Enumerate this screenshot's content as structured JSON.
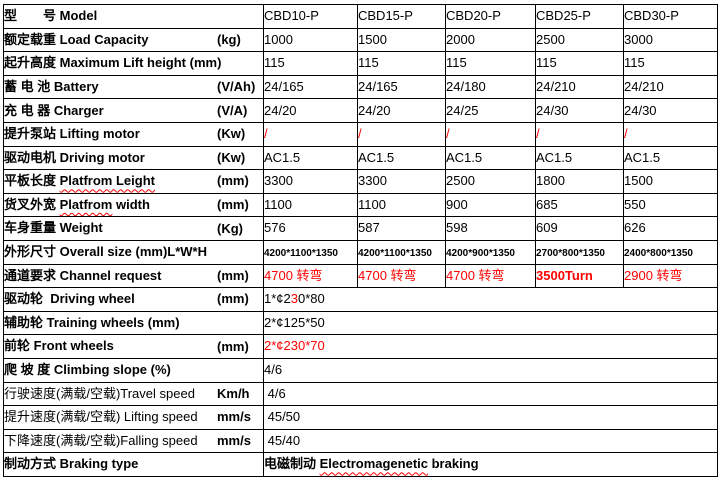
{
  "colors": {
    "text": "#000000",
    "accent_red": "#ff0000",
    "border": "#000000",
    "background": "#ffffff",
    "spellcheck_underline": "#ff0000"
  },
  "table": {
    "model_columns": [
      "CBD10-P",
      "CBD15-P",
      "CBD20-P",
      "CBD25-P",
      "CBD30-P"
    ],
    "rows": [
      {
        "name": "model",
        "label": [
          {
            "t": "型　　号 ",
            "b": true
          },
          {
            "t": "Model",
            "b": true
          }
        ],
        "cells": [
          [
            {
              "t": "CBD10-P"
            }
          ],
          [
            {
              "t": "CBD15-P"
            }
          ],
          [
            {
              "t": "CBD20-P"
            }
          ],
          [
            {
              "t": "CBD25-P"
            }
          ],
          [
            {
              "t": "CBD30-P"
            }
          ]
        ]
      },
      {
        "name": "load-capacity",
        "label": [
          {
            "t": "额定载重 ",
            "b": true
          },
          {
            "t": "Load Capacity",
            "b": true
          },
          {
            "t": "(kg)",
            "b": true,
            "u": true
          }
        ],
        "cells": [
          [
            {
              "t": "1000"
            }
          ],
          [
            {
              "t": "1500"
            }
          ],
          [
            {
              "t": "2000"
            }
          ],
          [
            {
              "t": "2500"
            }
          ],
          [
            {
              "t": "3000"
            }
          ]
        ]
      },
      {
        "name": "max-lift-height",
        "label": [
          {
            "t": "起升高度 ",
            "b": true
          },
          {
            "t": "Maximum Lift height (mm)",
            "b": true
          }
        ],
        "cells": [
          [
            {
              "t": "115"
            }
          ],
          [
            {
              "t": "115"
            }
          ],
          [
            {
              "t": "115"
            }
          ],
          [
            {
              "t": "115"
            }
          ],
          [
            {
              "t": "115"
            }
          ]
        ]
      },
      {
        "name": "battery",
        "label": [
          {
            "t": "蓄 电 池 ",
            "b": true
          },
          {
            "t": "Battery",
            "b": true
          },
          {
            "t": "(V/Ah)",
            "b": true,
            "u": true
          }
        ],
        "cells": [
          [
            {
              "t": "24/165"
            }
          ],
          [
            {
              "t": "24/165"
            }
          ],
          [
            {
              "t": "24/180"
            }
          ],
          [
            {
              "t": "24/210"
            }
          ],
          [
            {
              "t": "24/210"
            }
          ]
        ]
      },
      {
        "name": "charger",
        "label": [
          {
            "t": "充 电 器 ",
            "b": true
          },
          {
            "t": "Charger",
            "b": true
          },
          {
            "t": "(V/A)",
            "b": true,
            "u": true
          }
        ],
        "cells": [
          [
            {
              "t": "24/20"
            }
          ],
          [
            {
              "t": "24/20"
            }
          ],
          [
            {
              "t": "24/25"
            }
          ],
          [
            {
              "t": "24/30"
            }
          ],
          [
            {
              "t": "24/30"
            }
          ]
        ]
      },
      {
        "name": "lifting-motor",
        "label": [
          {
            "t": "提升泵站 ",
            "b": true
          },
          {
            "t": "Lifting motor",
            "b": true
          },
          {
            "t": "(Kw)",
            "b": true,
            "u": true
          }
        ],
        "cells": [
          [
            {
              "t": "/",
              "r": true
            }
          ],
          [
            {
              "t": "/",
              "r": true
            }
          ],
          [
            {
              "t": "/",
              "r": true
            }
          ],
          [
            {
              "t": "/",
              "r": true
            }
          ],
          [
            {
              "t": "/",
              "r": true
            }
          ]
        ]
      },
      {
        "name": "driving-motor",
        "label": [
          {
            "t": "驱动电机 ",
            "b": true
          },
          {
            "t": "Driving motor",
            "b": true
          },
          {
            "t": "(Kw)",
            "b": true,
            "u": true
          }
        ],
        "cells": [
          [
            {
              "t": "AC1.5"
            }
          ],
          [
            {
              "t": "AC1.5"
            }
          ],
          [
            {
              "t": "AC1.5"
            }
          ],
          [
            {
              "t": "AC1.5"
            }
          ],
          [
            {
              "t": "AC1.5"
            }
          ]
        ]
      },
      {
        "name": "platform-length",
        "label": [
          {
            "t": "平板长度 ",
            "b": true
          },
          {
            "t": "Platfrom Leight",
            "b": true,
            "w": true
          },
          {
            "t": "(mm)",
            "b": true,
            "u": true
          }
        ],
        "cells": [
          [
            {
              "t": "3300"
            }
          ],
          [
            {
              "t": "3300"
            }
          ],
          [
            {
              "t": "2500"
            }
          ],
          [
            {
              "t": "1800"
            }
          ],
          [
            {
              "t": "1500"
            }
          ]
        ]
      },
      {
        "name": "platform-width",
        "label": [
          {
            "t": "货叉外宽 ",
            "b": true
          },
          {
            "t": "Platfrom",
            "b": true,
            "w": true
          },
          {
            "t": " width",
            "b": true
          },
          {
            "t": "(mm)",
            "b": true,
            "u": true
          }
        ],
        "cells": [
          [
            {
              "t": "1100"
            }
          ],
          [
            {
              "t": "1100"
            }
          ],
          [
            {
              "t": "900"
            }
          ],
          [
            {
              "t": "685"
            }
          ],
          [
            {
              "t": "550"
            }
          ]
        ]
      },
      {
        "name": "weight",
        "label": [
          {
            "t": "车身重量 ",
            "b": true
          },
          {
            "t": "Weight",
            "b": true
          },
          {
            "t": "(Kg)",
            "b": true,
            "u": true
          }
        ],
        "cells": [
          [
            {
              "t": "576"
            }
          ],
          [
            {
              "t": "587"
            }
          ],
          [
            {
              "t": "598"
            }
          ],
          [
            {
              "t": "609"
            }
          ],
          [
            {
              "t": "626"
            }
          ]
        ]
      },
      {
        "name": "overall-size",
        "label": [
          {
            "t": "外形尺寸 ",
            "b": true
          },
          {
            "t": "Overall size (mm)L*W*H",
            "b": true
          }
        ],
        "cells": [
          [
            {
              "t": "4200*1100*1350",
              "b": true,
              "s": true
            }
          ],
          [
            {
              "t": "4200*1100*1350",
              "b": true,
              "s": true
            }
          ],
          [
            {
              "t": "4200*900*1350",
              "b": true,
              "s": true
            }
          ],
          [
            {
              "t": "2700*800*1350",
              "b": true,
              "s": true
            }
          ],
          [
            {
              "t": "2400*800*1350",
              "b": true,
              "s": true
            }
          ]
        ]
      },
      {
        "name": "channel-request",
        "label": [
          {
            "t": "通道要求 ",
            "b": true
          },
          {
            "t": "Channel request",
            "b": true
          },
          {
            "t": "(mm)",
            "b": true,
            "u": true
          }
        ],
        "cells": [
          [
            {
              "t": "4700 转弯",
              "r": true
            }
          ],
          [
            {
              "t": "4700 转弯",
              "r": true
            }
          ],
          [
            {
              "t": "4700 转弯",
              "r": true
            }
          ],
          [
            {
              "t": "3500Turn",
              "r": true,
              "b": true
            }
          ],
          [
            {
              "t": "2900 转弯",
              "r": true
            }
          ]
        ]
      },
      {
        "name": "driving-wheel",
        "span": 5,
        "label": [
          {
            "t": "驱动轮  ",
            "b": true
          },
          {
            "t": "Driving wheel",
            "b": true
          },
          {
            "t": "(mm)",
            "b": true,
            "u": true
          }
        ],
        "cells": [
          [
            {
              "t": "1*¢2"
            },
            {
              "t": "3",
              "r": true
            },
            {
              "t": "0*80"
            }
          ]
        ]
      },
      {
        "name": "training-wheels",
        "span": 5,
        "label": [
          {
            "t": "辅助轮 ",
            "b": true
          },
          {
            "t": "Training wheels (mm)",
            "b": true
          }
        ],
        "cells": [
          [
            {
              "t": "2*¢125*50"
            }
          ]
        ]
      },
      {
        "name": "front-wheels",
        "span": 5,
        "label": [
          {
            "t": "前轮 ",
            "b": true
          },
          {
            "t": "Front wheels",
            "b": true
          },
          {
            "t": "(mm)",
            "b": true,
            "u": true
          }
        ],
        "cells": [
          [
            {
              "t": "2*¢230*70",
              "r": true
            }
          ]
        ]
      },
      {
        "name": "climbing-slope",
        "span": 5,
        "label": [
          {
            "t": "爬 坡 度 ",
            "b": true
          },
          {
            "t": "Climbing slope (%)",
            "b": true
          }
        ],
        "cells": [
          [
            {
              "t": "4/6"
            }
          ]
        ]
      },
      {
        "name": "travel-speed",
        "span": 5,
        "label": [
          {
            "t": "行驶速度(满载/空载)Travel speed"
          },
          {
            "t": "Km/h",
            "b": true,
            "u": true
          }
        ],
        "cells": [
          [
            {
              "t": " 4/6"
            }
          ]
        ]
      },
      {
        "name": "lifting-speed",
        "span": 5,
        "label": [
          {
            "t": "提升速度(满载/空载) Lifting speed"
          },
          {
            "t": "mm/s",
            "b": true,
            "u": true
          }
        ],
        "cells": [
          [
            {
              "t": " 45/50"
            }
          ]
        ]
      },
      {
        "name": "falling-speed",
        "span": 5,
        "label": [
          {
            "t": "下降速度(满载/空载)Falling speed"
          },
          {
            "t": "mm/s",
            "b": true,
            "u": true
          }
        ],
        "cells": [
          [
            {
              "t": " 45/40"
            }
          ]
        ]
      },
      {
        "name": "braking-type",
        "span": 5,
        "label": [
          {
            "t": "制动方式 ",
            "b": true
          },
          {
            "t": "Braking type",
            "b": true
          }
        ],
        "cells": [
          [
            {
              "t": "电磁制动 ",
              "b": true
            },
            {
              "t": "Electromagenetic",
              "b": true,
              "w": true
            },
            {
              "t": " braking",
              "b": true
            }
          ]
        ]
      }
    ]
  }
}
